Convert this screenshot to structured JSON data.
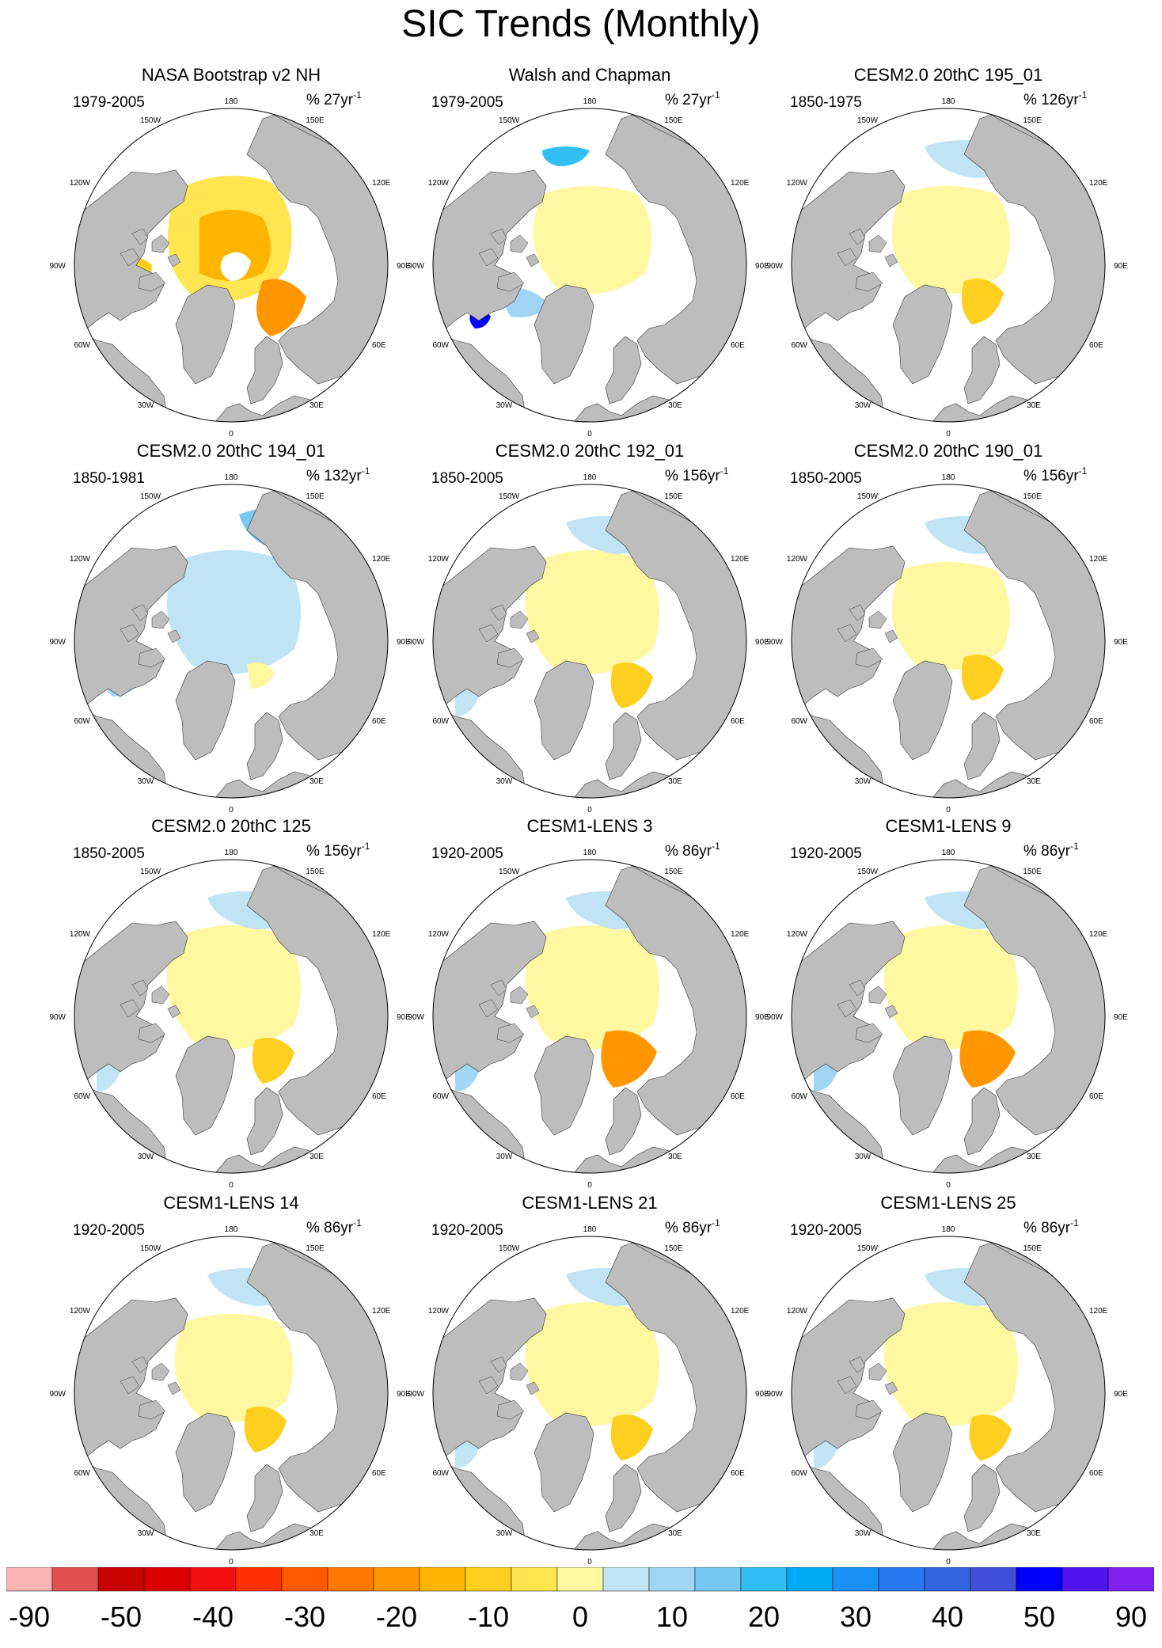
{
  "title": "SIC Trends (Monthly)",
  "compass_labels": {
    "top": "180",
    "bottom": "0",
    "left": "90W",
    "right": "90E",
    "upper_left_1": "150W",
    "upper_left_2": "120W",
    "upper_right_1": "150E",
    "upper_right_2": "120E",
    "lower_left_1": "60W",
    "lower_left_2": "30W",
    "lower_right_1": "60E",
    "lower_right_2": "30E"
  },
  "colors": {
    "land": "#bdbdbd",
    "ocean": "#ffffff",
    "map_border": "#000000"
  },
  "chart_data": {
    "type": "heatmap",
    "projection": "north-polar-stereographic",
    "layout": "4 rows x 3 columns",
    "units_label_prefix": "%",
    "panels": [
      {
        "title": "NASA Bootstrap v2 NH",
        "period": "1979-2005",
        "units": "% 27yr",
        "superscript": "-1",
        "pattern": "strong-decline"
      },
      {
        "title": "Walsh and Chapman",
        "period": "1979-2005",
        "units": "% 27yr",
        "superscript": "-1",
        "pattern": "mixed-extreme"
      },
      {
        "title": "CESM2.0 20thC 195_01",
        "period": "1850-1975",
        "units": "% 126yr",
        "superscript": "-1",
        "pattern": "mixed-blue"
      },
      {
        "title": "CESM2.0 20thC 194_01",
        "period": "1850-1981",
        "units": "% 132yr",
        "superscript": "-1",
        "pattern": "mostly-blue"
      },
      {
        "title": "CESM2.0 20thC 192_01",
        "period": "1850-2005",
        "units": "% 156yr",
        "superscript": "-1",
        "pattern": "yellow"
      },
      {
        "title": "CESM2.0 20thC 190_01",
        "period": "1850-2005",
        "units": "% 156yr",
        "superscript": "-1",
        "pattern": "mixed-blue"
      },
      {
        "title": "CESM2.0 20thC 125",
        "period": "1850-2005",
        "units": "% 156yr",
        "superscript": "-1",
        "pattern": "yellow"
      },
      {
        "title": "CESM1-LENS 3",
        "period": "1920-2005",
        "units": "% 86yr",
        "superscript": "-1",
        "pattern": "yellow-orange"
      },
      {
        "title": "CESM1-LENS 9",
        "period": "1920-2005",
        "units": "% 86yr",
        "superscript": "-1",
        "pattern": "yellow-orange"
      },
      {
        "title": "CESM1-LENS 14",
        "period": "1920-2005",
        "units": "% 86yr",
        "superscript": "-1",
        "pattern": "mixed-blue"
      },
      {
        "title": "CESM1-LENS 21",
        "period": "1920-2005",
        "units": "% 86yr",
        "superscript": "-1",
        "pattern": "yellow"
      },
      {
        "title": "CESM1-LENS 25",
        "period": "1920-2005",
        "units": "% 86yr",
        "superscript": "-1",
        "pattern": "yellow"
      }
    ],
    "colorbar": {
      "colors": [
        "#f9b4b4",
        "#e05050",
        "#c80000",
        "#dc0000",
        "#f01010",
        "#ff3000",
        "#ff5a00",
        "#ff7800",
        "#ff9600",
        "#ffb400",
        "#ffcf20",
        "#ffe650",
        "#fff8a0",
        "#c0e4f4",
        "#a0d6f4",
        "#78c8f4",
        "#30bef4",
        "#00aaf4",
        "#1890f4",
        "#2878f0",
        "#3464e0",
        "#4050d8",
        "#0000ff",
        "#5014f0",
        "#8020f0"
      ],
      "tick_labels": [
        "-90",
        "-50",
        "-40",
        "-30",
        "-20",
        "-10",
        "0",
        "10",
        "20",
        "30",
        "40",
        "50",
        "90"
      ]
    }
  }
}
